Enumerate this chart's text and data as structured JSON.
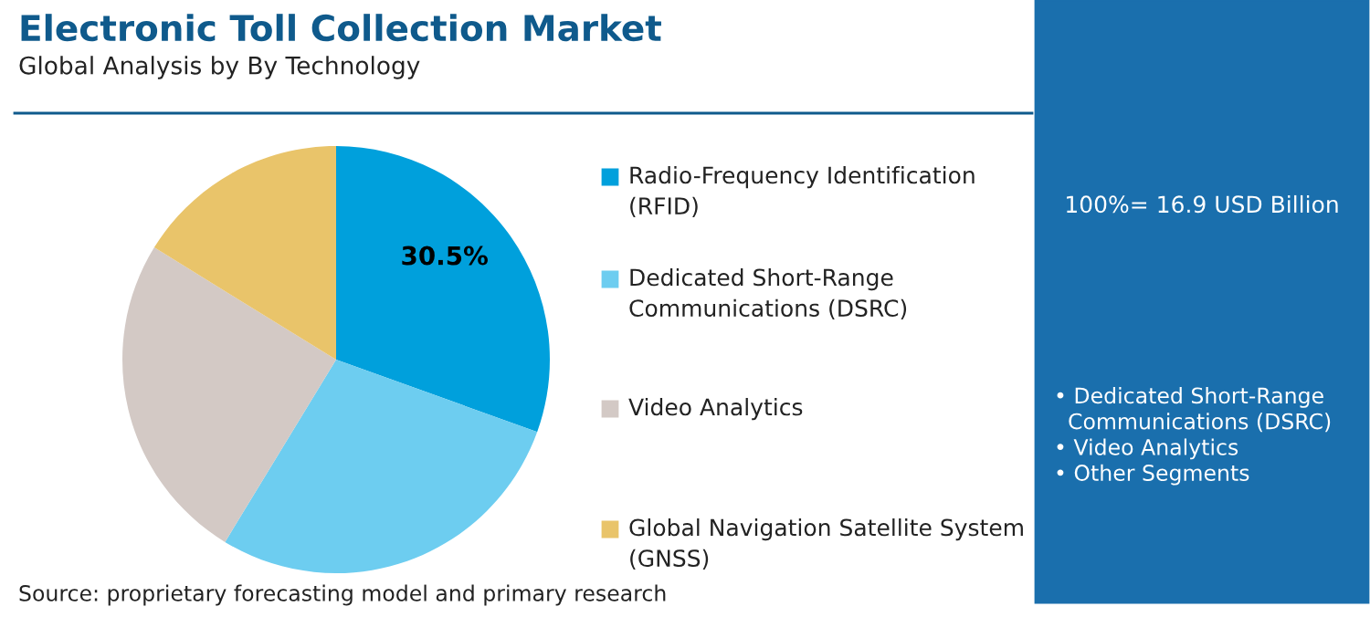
{
  "chart_data": {
    "type": "pie",
    "title": "Electronic Toll Collection Market",
    "subtitle": "Global Analysis by By Technology",
    "categories": [
      "Radio-Frequency Identification\n(RFID)",
      "Dedicated Short-Range\nCommunications (DSRC)",
      "Video Analytics",
      "Global Navigation Satellite System\n(GNSS)"
    ],
    "values": [
      30.5,
      28.2,
      25.1,
      16.2
    ],
    "colors": [
      "#00a0dc",
      "#6dcdf0",
      "#d3c9c5",
      "#e9c46a"
    ],
    "value_labels": [
      "30.5%",
      null,
      null,
      null
    ],
    "legend": "right",
    "annotations": [
      "100%= 16.9 USD Billion",
      "• Dedicated Short-Range\n  Communications (DSRC)\n• Video Analytics\n• Other Segments",
      "Source: proprietary forecasting model and primary research"
    ]
  }
}
